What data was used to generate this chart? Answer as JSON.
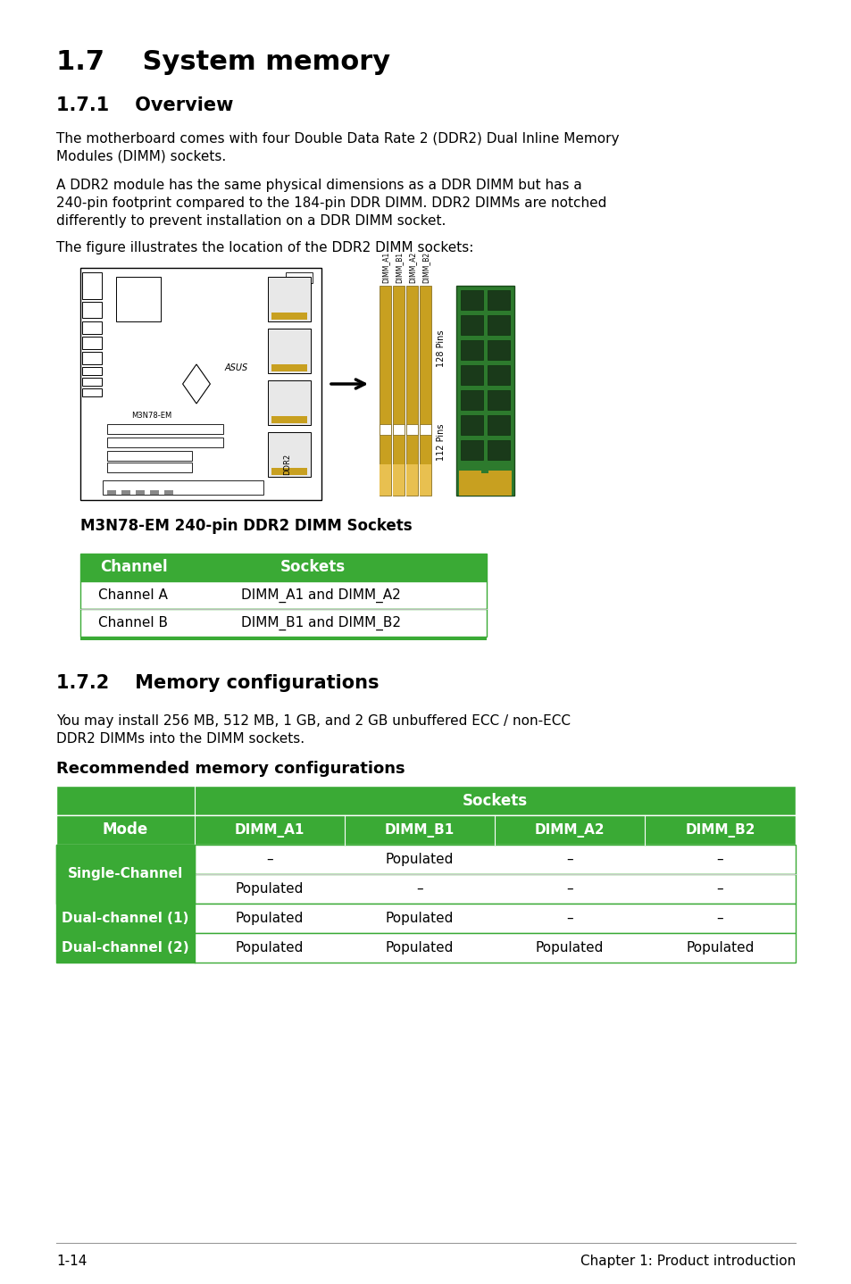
{
  "title_main": "1.7    System memory",
  "title_sub1": "1.7.1    Overview",
  "title_sub2": "1.7.2    Memory configurations",
  "para1": "The motherboard comes with four Double Data Rate 2 (DDR2) Dual Inline Memory\nModules (DIMM) sockets.",
  "para2": "A DDR2 module has the same physical dimensions as a DDR DIMM but has a\n240-pin footprint compared to the 184-pin DDR DIMM. DDR2 DIMMs are notched\ndifferently to prevent installation on a DDR DIMM socket.",
  "para3": "The figure illustrates the location of the DDR2 DIMM sockets:",
  "img_caption": "M3N78-EM 240-pin DDR2 DIMM Sockets",
  "table1_header": [
    "Channel",
    "Sockets"
  ],
  "table1_rows": [
    [
      "Channel A",
      "DIMM_A1 and DIMM_A2"
    ],
    [
      "Channel B",
      "DIMM_B1 and DIMM_B2"
    ]
  ],
  "para4": "You may install 256 MB, 512 MB, 1 GB, and 2 GB unbuffered ECC / non-ECC\nDDR2 DIMMs into the DIMM sockets.",
  "recommended_title": "Recommended memory configurations",
  "table2_top_header": "Sockets",
  "table2_mode_header": "Mode",
  "table2_col_headers": [
    "DIMM_A1",
    "DIMM_B1",
    "DIMM_A2",
    "DIMM_B2"
  ],
  "table2_rows": [
    [
      "Single-Channel",
      "–",
      "Populated",
      "–",
      "–"
    ],
    [
      "Single-Channel",
      "Populated",
      "–",
      "–",
      "–"
    ],
    [
      "Dual-channel (1)",
      "Populated",
      "Populated",
      "–",
      "–"
    ],
    [
      "Dual-channel (2)",
      "Populated",
      "Populated",
      "Populated",
      "Populated"
    ]
  ],
  "footer_left": "1-14",
  "footer_right": "Chapter 1: Product introduction",
  "green_color": "#3aaa35",
  "bg_color": "#ffffff",
  "text_color": "#000000",
  "white": "#ffffff"
}
